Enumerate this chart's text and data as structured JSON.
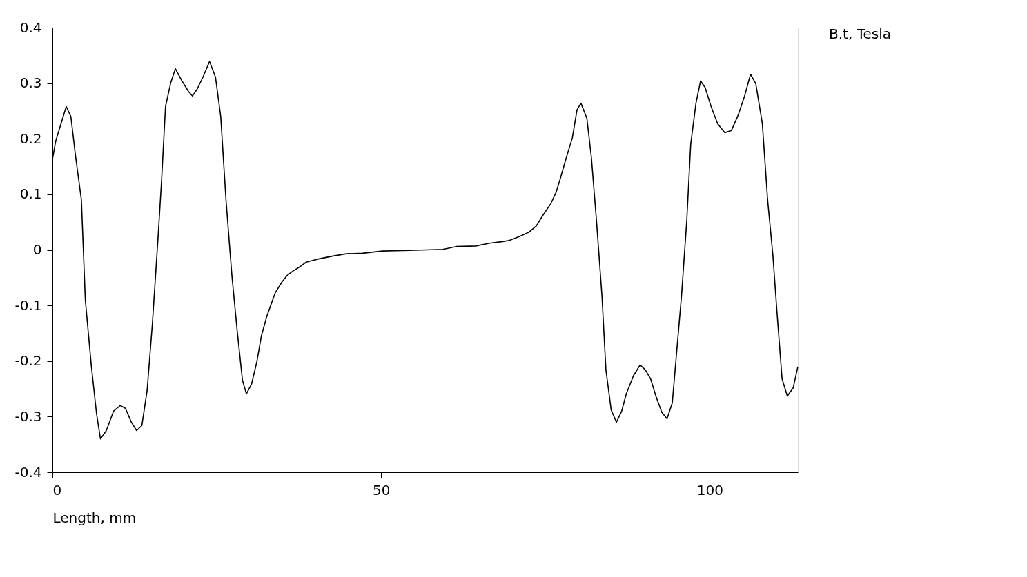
{
  "chart_data": {
    "type": "line",
    "xlabel": "Length, mm",
    "xlim": [
      0,
      113.4
    ],
    "xticks": [
      0,
      50,
      100
    ],
    "ylim": [
      -0.4,
      0.4
    ],
    "yticks": [
      -0.4,
      -0.3,
      -0.2,
      -0.1,
      0,
      0.1,
      0.2,
      0.3,
      0.4
    ],
    "grid": false,
    "legend": "top right",
    "marker": "none",
    "line_style": "solid",
    "series": [
      {
        "name": "B.t, Tesla",
        "color": "#000000",
        "x": [
          0,
          0.5,
          2.1,
          2.8,
          3.5,
          4.4,
          5.0,
          5.9,
          6.7,
          7.3,
          8.2,
          9.3,
          10.3,
          11.1,
          12.0,
          12.8,
          13.6,
          14.4,
          15.2,
          16.1,
          16.6,
          17.2,
          18.0,
          18.7,
          19.7,
          20.7,
          21.3,
          22.0,
          22.9,
          23.9,
          24.8,
          25.6,
          26.4,
          27.3,
          28.1,
          28.9,
          29.5,
          30.3,
          31.1,
          31.8,
          32.6,
          33.2,
          33.9,
          34.9,
          35.7,
          36.7,
          37.7,
          38.6,
          39.6,
          40.6,
          42.7,
          44.7,
          47.2,
          50.2,
          54.3,
          59.4,
          61.4,
          64.4,
          66.5,
          68.5,
          69.5,
          71.0,
          72.5,
          73.6,
          74.6,
          75.8,
          76.6,
          77.3,
          78.1,
          79.1,
          79.8,
          80.4,
          81.3,
          82.0,
          82.8,
          83.6,
          84.2,
          85.0,
          85.8,
          86.6,
          87.3,
          88.4,
          89.4,
          90.2,
          91.0,
          91.8,
          92.7,
          93.5,
          94.3,
          94.9,
          95.7,
          96.5,
          97.1,
          97.9,
          98.6,
          99.3,
          100.2,
          101.2,
          102.3,
          103.3,
          104.3,
          105.3,
          106.2,
          107.0,
          108.0,
          108.8,
          109.6,
          110.2,
          111.0,
          111.8,
          112.7,
          113.4
        ],
        "values": [
          0.163,
          0.196,
          0.258,
          0.24,
          0.17,
          0.09,
          -0.09,
          -0.207,
          -0.294,
          -0.34,
          -0.325,
          -0.29,
          -0.28,
          -0.285,
          -0.31,
          -0.325,
          -0.316,
          -0.253,
          -0.133,
          0.029,
          0.125,
          0.258,
          0.301,
          0.326,
          0.304,
          0.285,
          0.277,
          0.289,
          0.311,
          0.339,
          0.311,
          0.24,
          0.09,
          -0.046,
          -0.145,
          -0.234,
          -0.259,
          -0.241,
          -0.201,
          -0.154,
          -0.12,
          -0.1,
          -0.077,
          -0.058,
          -0.046,
          -0.037,
          -0.03,
          -0.022,
          -0.019,
          -0.016,
          -0.011,
          -0.007,
          -0.006,
          -0.002,
          -0.001,
          0.001,
          0.006,
          0.007,
          0.012,
          0.015,
          0.017,
          0.024,
          0.032,
          0.043,
          0.062,
          0.083,
          0.103,
          0.13,
          0.163,
          0.202,
          0.252,
          0.264,
          0.237,
          0.165,
          0.047,
          -0.083,
          -0.216,
          -0.288,
          -0.31,
          -0.29,
          -0.259,
          -0.226,
          -0.207,
          -0.216,
          -0.232,
          -0.263,
          -0.292,
          -0.304,
          -0.275,
          -0.192,
          -0.083,
          0.053,
          0.19,
          0.264,
          0.304,
          0.292,
          0.258,
          0.227,
          0.211,
          0.215,
          0.242,
          0.277,
          0.316,
          0.299,
          0.227,
          0.09,
          -0.009,
          -0.108,
          -0.232,
          -0.263,
          -0.248,
          -0.21
        ]
      }
    ]
  }
}
